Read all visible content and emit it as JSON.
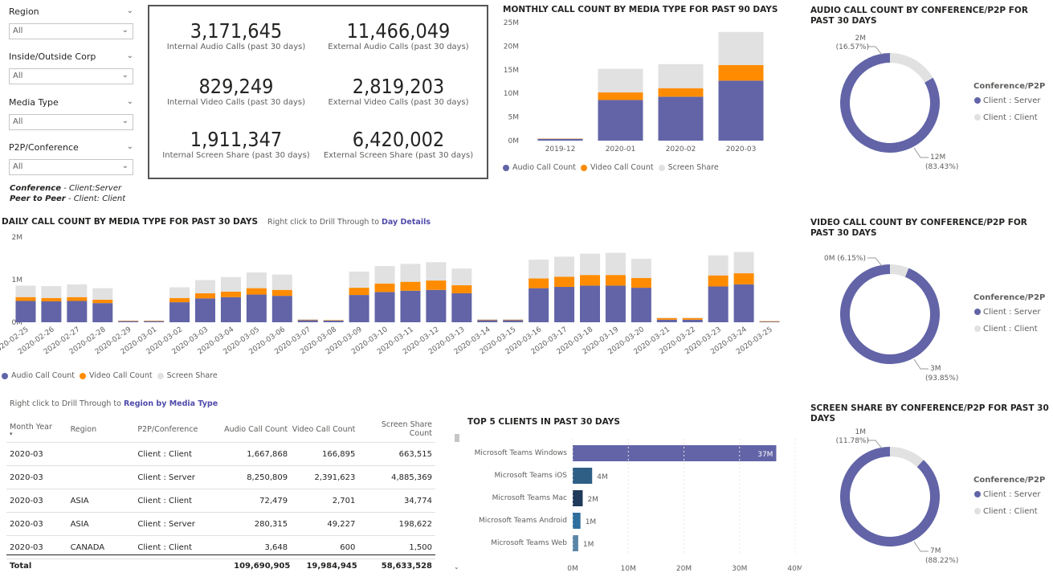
{
  "slicers": [
    {
      "label": "Region",
      "value": "All"
    },
    {
      "label": "Inside/Outside Corp",
      "value": "All"
    },
    {
      "label": "Media Type",
      "value": "All"
    },
    {
      "label": "P2P/Conference",
      "value": "All"
    }
  ],
  "notes": {
    "line1_bold": "Conference",
    "line1_rest": " - Client:Server",
    "line2_bold": "Peer to Peer",
    "line2_rest": " - Client: Client"
  },
  "kpis": [
    {
      "value": "3,171,645",
      "label": "Internal Audio Calls (past 30 days)"
    },
    {
      "value": "11,466,049",
      "label": "External Audio Calls (past 30 days)"
    },
    {
      "value": "829,249",
      "label": "Internal Video Calls (past 30 days)"
    },
    {
      "value": "2,819,203",
      "label": "External Video Calls (past 30 days)"
    },
    {
      "value": "1,911,347",
      "label": "Internal Screen Share (past 30 days)"
    },
    {
      "value": "6,420,002",
      "label": "External Screen Share (past 30 days)"
    }
  ],
  "colors": {
    "audio": "#6264a7",
    "video": "#ff8c00",
    "screen": "#e1e1e1",
    "navy": "#1f3a5a",
    "teal": "#2e6f9e"
  },
  "monthly": {
    "title": "MONTHLY CALL COUNT BY MEDIA TYPE FOR PAST 90 DAYS",
    "legend": [
      "Audio Call Count",
      "Video Call Count",
      "Screen Share"
    ],
    "chart_data": {
      "type": "bar",
      "categories": [
        "2019-12",
        "2020-01",
        "2020-02",
        "2020-03"
      ],
      "series": [
        {
          "name": "Audio Call Count",
          "values": [
            0.4,
            8.6,
            9.3,
            12.7
          ]
        },
        {
          "name": "Video Call Count",
          "values": [
            0.05,
            1.6,
            1.8,
            3.3
          ]
        },
        {
          "name": "Screen Share",
          "values": [
            0.05,
            5.0,
            5.1,
            7.0
          ]
        }
      ],
      "yticks": [
        "0M",
        "5M",
        "10M",
        "15M",
        "20M",
        "25M"
      ],
      "ylim": [
        0,
        25
      ]
    }
  },
  "daily": {
    "title": "DAILY CALL COUNT BY MEDIA TYPE FOR PAST 30 DAYS",
    "drill_prefix": "Right click to Drill Through to ",
    "drill_target": "Day Details",
    "legend": [
      "Audio Call Count",
      "Video Call Count",
      "Screen Share"
    ],
    "chart_data": {
      "type": "bar",
      "categories": [
        "2020-02-25",
        "2020-02-26",
        "2020-02-27",
        "2020-02-28",
        "2020-02-29",
        "2020-03-01",
        "2020-03-02",
        "2020-03-03",
        "2020-03-04",
        "2020-03-05",
        "2020-03-06",
        "2020-03-07",
        "2020-03-08",
        "2020-03-09",
        "2020-03-10",
        "2020-03-11",
        "2020-03-12",
        "2020-03-13",
        "2020-03-14",
        "2020-03-15",
        "2020-03-16",
        "2020-03-17",
        "2020-03-18",
        "2020-03-19",
        "2020-03-20",
        "2020-03-21",
        "2020-03-22",
        "2020-03-23",
        "2020-03-24",
        "2020-03-25"
      ],
      "series": [
        {
          "name": "Audio Call Count",
          "values": [
            0.5,
            0.49,
            0.5,
            0.45,
            0.03,
            0.03,
            0.47,
            0.56,
            0.59,
            0.65,
            0.62,
            0.05,
            0.04,
            0.64,
            0.71,
            0.74,
            0.76,
            0.68,
            0.05,
            0.05,
            0.8,
            0.83,
            0.86,
            0.86,
            0.81,
            0.06,
            0.06,
            0.84,
            0.89,
            0.02
          ]
        },
        {
          "name": "Video Call Count",
          "values": [
            0.09,
            0.08,
            0.09,
            0.08,
            0.005,
            0.005,
            0.1,
            0.12,
            0.13,
            0.15,
            0.14,
            0.01,
            0.01,
            0.17,
            0.2,
            0.21,
            0.22,
            0.19,
            0.01,
            0.01,
            0.23,
            0.24,
            0.25,
            0.25,
            0.23,
            0.04,
            0.04,
            0.26,
            0.26,
            0.005
          ]
        },
        {
          "name": "Screen Share",
          "values": [
            0.27,
            0.28,
            0.3,
            0.27,
            0.01,
            0.01,
            0.25,
            0.31,
            0.34,
            0.37,
            0.36,
            0.02,
            0.01,
            0.38,
            0.41,
            0.42,
            0.43,
            0.39,
            0.02,
            0.02,
            0.44,
            0.47,
            0.5,
            0.52,
            0.45,
            0.01,
            0.01,
            0.47,
            0.5,
            0.0
          ]
        }
      ],
      "yticks": [
        "0M",
        "1M",
        "2M"
      ],
      "ylim": [
        0,
        2
      ]
    }
  },
  "table": {
    "drill_prefix": "Right click to Drill Through to ",
    "drill_target": "Region by Media Type",
    "headers": [
      "Month Year",
      "Region",
      "P2P/Conference",
      "Audio Call Count",
      "Video Call Count",
      "Screen Share Count"
    ],
    "rows": [
      [
        "2020-03",
        "",
        "Client : Client",
        "1,667,868",
        "166,895",
        "663,515"
      ],
      [
        "2020-03",
        "",
        "Client : Server",
        "8,250,809",
        "2,391,623",
        "4,885,369"
      ],
      [
        "2020-03",
        "ASIA",
        "Client : Client",
        "72,479",
        "2,701",
        "34,774"
      ],
      [
        "2020-03",
        "ASIA",
        "Client : Server",
        "280,315",
        "49,227",
        "198,622"
      ],
      [
        "2020-03",
        "CANADA",
        "Client : Client",
        "3,648",
        "600",
        "1,500"
      ]
    ],
    "total": [
      "Total",
      "",
      "",
      "109,690,905",
      "19,984,945",
      "58,633,528"
    ]
  },
  "top5": {
    "title": "TOP 5 CLIENTS IN PAST 30 DAYS",
    "chart_data": {
      "type": "bar",
      "categories": [
        "Microsoft Teams Windows",
        "Microsoft Teams iOS",
        "Microsoft Teams Mac",
        "Microsoft Teams Android",
        "Microsoft Teams Web"
      ],
      "values": [
        36.6,
        3.5,
        1.8,
        1.4,
        1.0
      ],
      "labels": [
        "37M",
        "4M",
        "2M",
        "1M",
        "1M"
      ],
      "xticks": [
        "0M",
        "10M",
        "20M",
        "30M",
        "40M"
      ],
      "xlim": [
        0,
        40
      ]
    }
  },
  "donuts": [
    {
      "title": "AUDIO CALL COUNT BY CONFERENCE/P2P FOR PAST 30 DAYS",
      "legend_title": "Conference/P2P",
      "legend": [
        "Client : Server",
        "Client : Client"
      ],
      "chart_data": {
        "type": "pie",
        "categories": [
          "Client : Server",
          "Client : Client"
        ],
        "values": [
          83.43,
          16.57
        ]
      },
      "label_small": "2M",
      "label_small_pct": "(16.57%)",
      "label_big": "12M",
      "label_big_pct": "(83.43%)"
    },
    {
      "title": "VIDEO CALL COUNT BY CONFERENCE/P2P FOR PAST 30 DAYS",
      "legend_title": "Conference/P2P",
      "legend": [
        "Client : Server",
        "Client : Client"
      ],
      "chart_data": {
        "type": "pie",
        "categories": [
          "Client : Server",
          "Client : Client"
        ],
        "values": [
          93.85,
          6.15
        ]
      },
      "label_small": "0M (6.15%)",
      "label_big": "3M",
      "label_big_pct": "(93.85%)"
    },
    {
      "title": "SCREEN SHARE BY CONFERENCE/P2P FOR PAST 30 DAYS",
      "legend_title": "Conference/P2P",
      "legend": [
        "Client : Server",
        "Client : Client"
      ],
      "chart_data": {
        "type": "pie",
        "categories": [
          "Client : Server",
          "Client : Client"
        ],
        "values": [
          88.22,
          11.78
        ]
      },
      "label_small": "1M",
      "label_small_pct": "(11.78%)",
      "label_big": "7M",
      "label_big_pct": "(88.22%)"
    }
  ]
}
